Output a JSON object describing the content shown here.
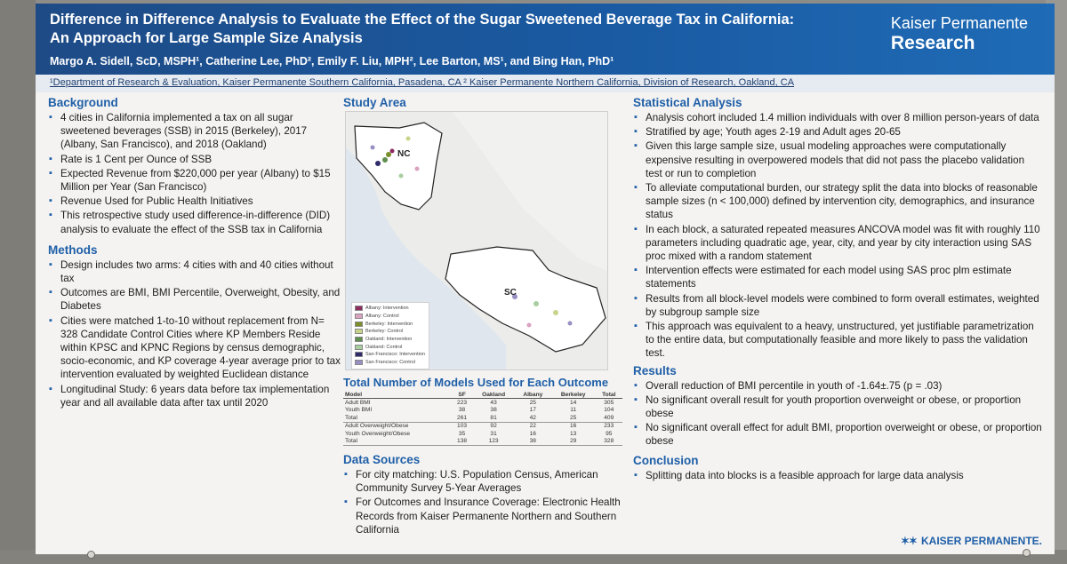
{
  "poster": {
    "title_line1": "Difference in Difference Analysis to Evaluate the Effect of the Sugar Sweetened Beverage Tax in California:",
    "title_line2": "An Approach for Large Sample Size Analysis",
    "authors": "Margo A. Sidell, ScD, MSPH¹,  Catherine Lee, PhD², Emily F. Liu, MPH², Lee Barton, MS¹, and Bing Han, PhD¹",
    "affiliations": "¹Department of Research & Evaluation, Kaiser Permanente Southern California, Pasadena, CA ² Kaiser Permanente Northern California, Division of Research, Oakland, CA",
    "brand_line1": "Kaiser Permanente",
    "brand_line2": "Research",
    "footer_logo": "KAISER PERMANENTE."
  },
  "background": {
    "heading": "Background",
    "bullets": [
      "4 cities in California implemented a tax on all sugar sweetened beverages (SSB) in 2015 (Berkeley), 2017 (Albany, San Francisco), and 2018 (Oakland)",
      "Rate is 1 Cent per Ounce of SSB",
      "Expected Revenue from $220,000 per year (Albany) to $15 Million per Year (San Francisco)",
      "Revenue Used for Public Health Initiatives",
      "This retrospective study used difference-in-difference (DID) analysis to evaluate the effect of the SSB tax in California"
    ]
  },
  "methods": {
    "heading": "Methods",
    "bullets": [
      "Design includes two arms: 4 cities with and 40 cities without tax",
      "Outcomes are BMI, BMI Percentile, Overweight, Obesity, and Diabetes",
      "Cities were matched 1-to-10 without replacement from N= 328 Candidate Control Cities where KP Members Reside within KPSC and KPNC Regions by census demographic, socio-economic, and KP coverage 4-year average prior to tax intervention evaluated by weighted Euclidean distance",
      "Longitudinal Study: 6 years data before tax implementation year and all available data after tax until 2020"
    ]
  },
  "study_area": {
    "heading": "Study Area",
    "label_nc": "NC",
    "label_sc": "SC",
    "legend": [
      {
        "label": "Albany: Intervention",
        "color": "#8e2b5f"
      },
      {
        "label": "Albany: Control",
        "color": "#d9a3c0"
      },
      {
        "label": "Berkeley: Intervention",
        "color": "#7a8f2a"
      },
      {
        "label": "Berkeley: Control",
        "color": "#c9d48a"
      },
      {
        "label": "Oakland: Intervention",
        "color": "#5f8e4f"
      },
      {
        "label": "Oakland: Control",
        "color": "#a9cfa0"
      },
      {
        "label": "San Francisco: Intervention",
        "color": "#2e2a6b"
      },
      {
        "label": "San Francisco: Control",
        "color": "#9a8fc4"
      }
    ]
  },
  "models_table": {
    "title": "Total Number of Models Used for Each Outcome",
    "headers": [
      "Model",
      "SF",
      "Oakland",
      "Albany",
      "Berkeley",
      "Total"
    ],
    "rows": [
      {
        "cells": [
          "Adult BMI",
          "223",
          "43",
          "25",
          "14",
          "305"
        ],
        "total": false
      },
      {
        "cells": [
          "Youth BMI",
          "38",
          "38",
          "17",
          "11",
          "104"
        ],
        "total": false
      },
      {
        "cells": [
          "Total",
          "261",
          "81",
          "42",
          "25",
          "409"
        ],
        "total": true
      },
      {
        "cells": [
          "Adult Overweight/Obese",
          "103",
          "92",
          "22",
          "16",
          "233"
        ],
        "total": false
      },
      {
        "cells": [
          "Youth Overweight/Obese",
          "35",
          "31",
          "16",
          "13",
          "95"
        ],
        "total": false
      },
      {
        "cells": [
          "Total",
          "138",
          "123",
          "38",
          "29",
          "328"
        ],
        "total": true
      }
    ]
  },
  "data_sources": {
    "heading": "Data Sources",
    "bullets": [
      "For city matching: U.S. Population Census, American Community Survey 5-Year Averages",
      "For Outcomes and Insurance Coverage: Electronic Health Records from Kaiser Permanente Northern and Southern California"
    ]
  },
  "statistical_analysis": {
    "heading": "Statistical Analysis",
    "bullets": [
      "Analysis cohort included 1.4 million individuals with over 8 million person-years of data",
      "Stratified by age; Youth ages 2-19 and Adult ages 20-65",
      "Given this large sample size, usual modeling approaches were computationally expensive resulting in overpowered models that did not pass the placebo validation test or run to completion",
      "To alleviate computational burden, our strategy split the data into blocks of reasonable sample sizes (n < 100,000) defined by intervention city, demographics, and insurance status",
      "In each block, a saturated repeated measures ANCOVA model was fit with roughly 110 parameters including quadratic age, year, city, and year by city interaction using SAS proc mixed with a random statement",
      "Intervention effects were estimated for each model using SAS proc plm estimate statements",
      "Results from all block-level models were combined to form overall estimates, weighted by subgroup sample size",
      "This approach was equivalent to a heavy, unstructured, yet justifiable parametrization to the entire data, but computationally feasible and more likely to pass the validation test."
    ]
  },
  "results": {
    "heading": "Results",
    "bullets": [
      "Overall reduction of BMI percentile in youth of -1.64±.75 (p = .03)",
      "No significant overall result for youth proportion overweight or obese, or proportion obese",
      "No significant overall effect for adult BMI, proportion overweight or obese, or proportion obese"
    ]
  },
  "conclusion": {
    "heading": "Conclusion",
    "bullets": [
      "Splitting data into blocks is a feasible approach for large data analysis"
    ]
  }
}
